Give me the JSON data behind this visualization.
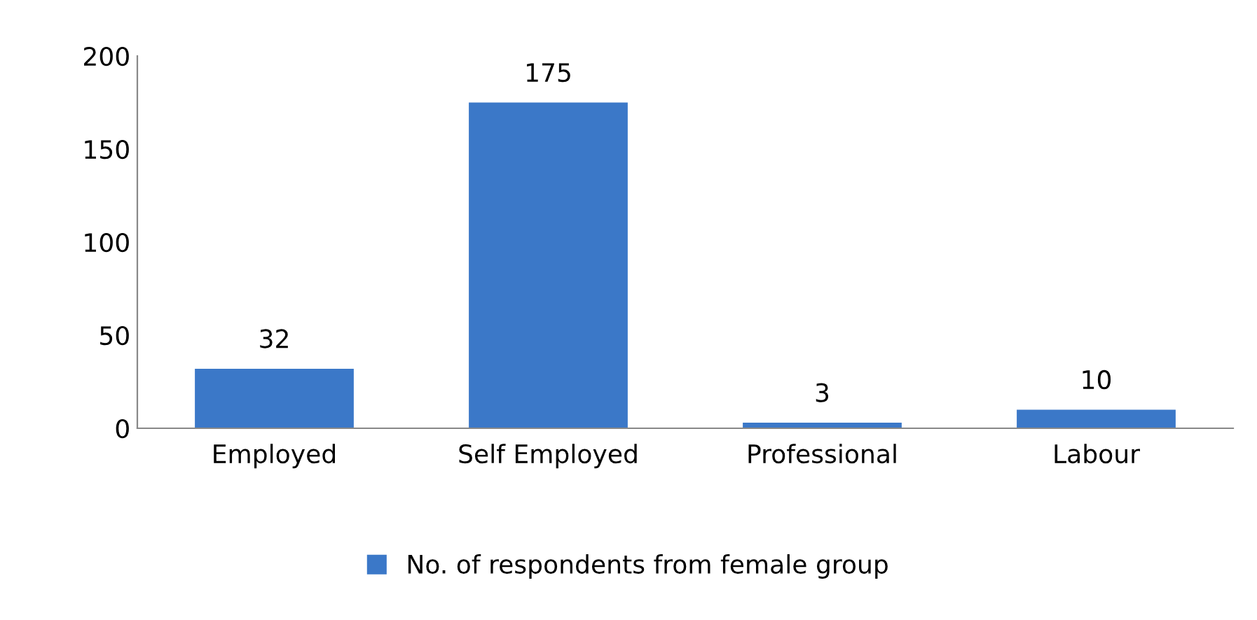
{
  "chart_data": {
    "type": "bar",
    "categories": [
      "Employed",
      "Self Employed",
      "Professional",
      "Labour"
    ],
    "series": [
      {
        "name": "No. of respondents from female group",
        "color": "#3b78c8",
        "values": [
          32,
          175,
          3,
          10
        ]
      }
    ],
    "ylim": [
      0,
      200
    ],
    "yticks": [
      0,
      50,
      100,
      150,
      200
    ],
    "grid": false,
    "legend": "bottom",
    "data_labels": true
  }
}
